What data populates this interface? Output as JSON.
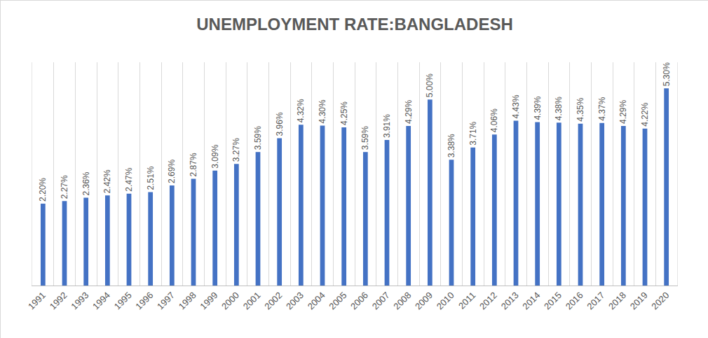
{
  "chart_data": {
    "type": "bar",
    "title": "UNEMPLOYMENT RATE:BANGLADESH",
    "categories": [
      "1991",
      "1992",
      "1993",
      "1994",
      "1995",
      "1996",
      "1997",
      "1998",
      "1999",
      "2000",
      "2001",
      "2002",
      "2003",
      "2004",
      "2005",
      "2006",
      "2007",
      "2008",
      "2009",
      "2010",
      "2011",
      "2012",
      "2013",
      "2014",
      "2015",
      "2016",
      "2017",
      "2018",
      "2019",
      "2020"
    ],
    "values": [
      2.2,
      2.27,
      2.36,
      2.42,
      2.47,
      2.51,
      2.69,
      2.87,
      3.09,
      3.27,
      3.59,
      3.96,
      4.32,
      4.3,
      4.25,
      3.59,
      3.91,
      4.29,
      5.0,
      3.38,
      3.71,
      4.06,
      4.43,
      4.39,
      4.38,
      4.35,
      4.37,
      4.29,
      4.22,
      5.3
    ],
    "value_labels": [
      "2.20%",
      "2.27%",
      "2.36%",
      "2.42%",
      "2.47%",
      "2.51%",
      "2.69%",
      "2.87%",
      "3.09%",
      "3.27%",
      "3.59%",
      "3.96%",
      "4.32%",
      "4.30%",
      "4.25%",
      "3.59%",
      "3.91%",
      "4.29%",
      "5.00%",
      "3.38%",
      "3.71%",
      "4.06%",
      "4.43%",
      "4.39%",
      "4.38%",
      "4.35%",
      "4.37%",
      "4.29%",
      "4.22%",
      "5.30%"
    ],
    "color": "#4472c4",
    "ylim": [
      0,
      6
    ],
    "data_labels": true,
    "tick_labels": "x",
    "grid": true
  }
}
